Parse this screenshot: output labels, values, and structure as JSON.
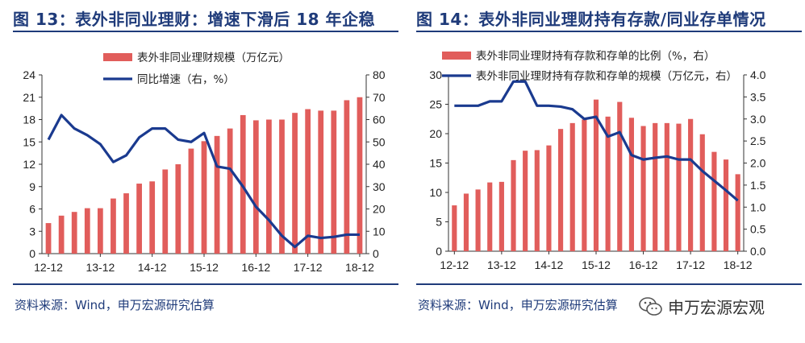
{
  "colors": {
    "bar": "#e15d5b",
    "line": "#1a3a8f",
    "title": "#1f3b7a"
  },
  "charts": [
    {
      "title": "图 13：表外非同业理财：增速下滑后 18 年企稳",
      "source": "资料来源：Wind，申万宏源研究估算"
    },
    {
      "title": "图 14：表外非同业理财持有存款/同业存单情况",
      "source": "资料来源：Wind，申万宏源研究估算"
    }
  ],
  "watermark": {
    "text": "申万宏源宏观",
    "icon": "wechat-icon"
  },
  "chart_data": [
    {
      "type": "bar+line",
      "categories": [
        "12-12",
        "",
        "",
        "",
        "13-12",
        "",
        "",
        "",
        "14-12",
        "",
        "",
        "",
        "15-12",
        "",
        "",
        "",
        "16-12",
        "",
        "",
        "",
        "17-12",
        "",
        "",
        "",
        "18-12"
      ],
      "bar_series": {
        "name": "表外非同业理财规模（万亿元）",
        "axis": "left",
        "values": [
          4.1,
          5.1,
          5.6,
          6.1,
          6.1,
          7.4,
          8.1,
          9.4,
          9.7,
          11.3,
          12.0,
          14.1,
          15.1,
          15.8,
          16.8,
          18.6,
          17.9,
          18.0,
          18.0,
          18.9,
          19.4,
          19.2,
          19.2,
          20.6,
          21.0
        ]
      },
      "line_series": {
        "name": "同比增速（右，%）",
        "axis": "right",
        "values": [
          51,
          62,
          56,
          53,
          49,
          41,
          44,
          52,
          56,
          56,
          51,
          50,
          54,
          39,
          38,
          30,
          21,
          15,
          8,
          3,
          8,
          7,
          7.5,
          8.5,
          8.5
        ]
      },
      "left_axis": {
        "min": 0,
        "max": 24,
        "ticks": [
          "0",
          "3",
          "6",
          "9",
          "12",
          "15",
          "18",
          "21",
          "24"
        ]
      },
      "right_axis": {
        "min": 0,
        "max": 80,
        "ticks": [
          "0",
          "10",
          "20",
          "30",
          "40",
          "50",
          "60",
          "70",
          "80"
        ]
      },
      "x_ticks": [
        "12-12",
        "13-12",
        "14-12",
        "15-12",
        "16-12",
        "17-12",
        "18-12"
      ],
      "legend": [
        "表外非同业理财规模（万亿元）",
        "同比增速（右，%）"
      ]
    },
    {
      "type": "bar+line",
      "categories": [
        "12-12",
        "",
        "",
        "",
        "13-12",
        "",
        "",
        "",
        "14-12",
        "",
        "",
        "",
        "15-12",
        "",
        "",
        "",
        "16-12",
        "",
        "",
        "",
        "17-12",
        "",
        "",
        "",
        "18-12"
      ],
      "bar_series": {
        "name": "表外非同业理财持有存款和存单的比例（%，右）",
        "axis": "left",
        "values": [
          7.8,
          9.8,
          10.5,
          11.7,
          11.8,
          15.5,
          17.1,
          17.2,
          18.0,
          20.8,
          21.8,
          22.4,
          25.8,
          22.9,
          25.4,
          22.7,
          21.3,
          21.8,
          21.8,
          21.7,
          22.5,
          19.9,
          16.9,
          15.6,
          13.1
        ]
      },
      "line_series": {
        "name": "表外非同业理财持有存款和存单的规模（万亿元，右）",
        "axis": "right",
        "values": [
          3.3,
          3.3,
          3.3,
          3.4,
          3.4,
          3.85,
          3.85,
          3.3,
          3.3,
          3.28,
          3.22,
          3.0,
          3.05,
          2.6,
          2.7,
          2.18,
          2.08,
          2.12,
          2.15,
          2.08,
          2.08,
          1.82,
          1.6,
          1.38,
          1.15
        ]
      },
      "left_axis": {
        "min": 0,
        "max": 30,
        "ticks": [
          "0",
          "5",
          "10",
          "15",
          "20",
          "25",
          "30"
        ]
      },
      "right_axis": {
        "min": 0,
        "max": 4,
        "ticks": [
          "0.0",
          "0.5",
          "1.0",
          "1.5",
          "2.0",
          "2.5",
          "3.0",
          "3.5",
          "4.0"
        ]
      },
      "x_ticks": [
        "12-12",
        "13-12",
        "14-12",
        "15-12",
        "16-12",
        "17-12",
        "18-12"
      ],
      "legend": [
        "表外非同业理财持有存款和存单的比例（%，右）",
        "表外非同业理财持有存款和存单的规模（万亿元，右）"
      ]
    }
  ]
}
